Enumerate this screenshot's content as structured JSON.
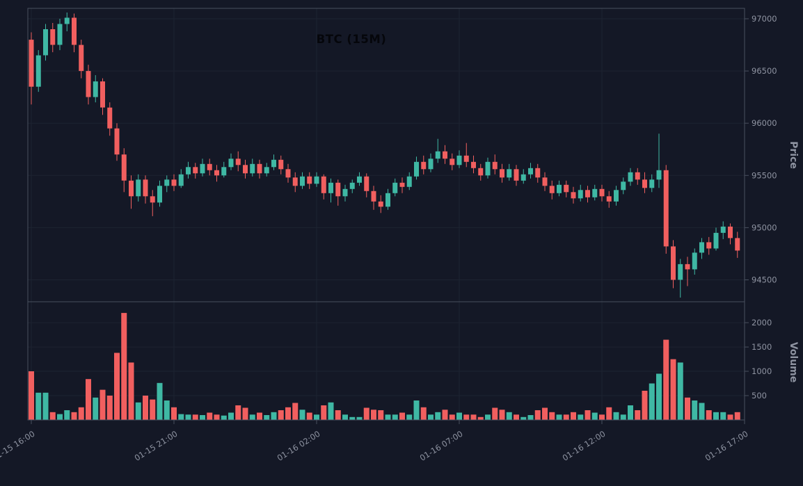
{
  "chart_data": {
    "type": "candlestick",
    "title": "BTC (15M)",
    "symbol": "BTC",
    "interval": "15M",
    "start_time": "01-15 16:00",
    "interval_minutes": 15,
    "x_tick_labels": [
      "01-15 16:00",
      "01-15 21:00",
      "01-16 02:00",
      "01-16 07:00",
      "01-16 12:00",
      "01-16 17:00"
    ],
    "price_axis": {
      "label": "Price",
      "ticks": [
        94500,
        95000,
        95500,
        96000,
        96500,
        97000
      ],
      "range": [
        94290,
        97100
      ]
    },
    "volume_axis": {
      "label": "Volume",
      "ticks": [
        500,
        1000,
        1500,
        2000
      ],
      "range": [
        0,
        2430
      ]
    },
    "colors": {
      "up": "#3fb8a4",
      "down": "#f15f5f",
      "background": "#141826",
      "grid": "#1d2331",
      "frame": "#49505f",
      "axis_text": "#8e93a1",
      "title": "#05060b"
    },
    "legend": "none",
    "grid": "on",
    "candles_format": [
      "open",
      "high",
      "low",
      "close",
      "volume"
    ],
    "candles": [
      [
        96800,
        96870,
        96180,
        96350,
        1000
      ],
      [
        96350,
        96700,
        96300,
        96650,
        560
      ],
      [
        96650,
        96950,
        96600,
        96900,
        560
      ],
      [
        96900,
        96960,
        96680,
        96750,
        160
      ],
      [
        96750,
        97000,
        96700,
        96950,
        120
      ],
      [
        96950,
        97060,
        96880,
        97010,
        200
      ],
      [
        97010,
        97050,
        96680,
        96750,
        160
      ],
      [
        96750,
        96800,
        96430,
        96500,
        260
      ],
      [
        96500,
        96560,
        96180,
        96250,
        840
      ],
      [
        96250,
        96460,
        96200,
        96400,
        460
      ],
      [
        96400,
        96430,
        96080,
        96150,
        620
      ],
      [
        96150,
        96200,
        95880,
        95950,
        500
      ],
      [
        95950,
        96000,
        95640,
        95700,
        1380
      ],
      [
        95700,
        95760,
        95340,
        95450,
        2200
      ],
      [
        95450,
        95500,
        95180,
        95300,
        1180
      ],
      [
        95300,
        95510,
        95250,
        95460,
        360
      ],
      [
        95460,
        95500,
        95230,
        95300,
        500
      ],
      [
        95300,
        95360,
        95110,
        95240,
        420
      ],
      [
        95240,
        95450,
        95200,
        95400,
        760
      ],
      [
        95400,
        95500,
        95340,
        95460,
        400
      ],
      [
        95460,
        95510,
        95350,
        95400,
        260
      ],
      [
        95400,
        95560,
        95380,
        95510,
        120
      ],
      [
        95510,
        95630,
        95470,
        95580,
        110
      ],
      [
        95580,
        95620,
        95470,
        95520,
        110
      ],
      [
        95520,
        95660,
        95490,
        95610,
        100
      ],
      [
        95610,
        95660,
        95500,
        95550,
        150
      ],
      [
        95550,
        95600,
        95440,
        95500,
        110
      ],
      [
        95500,
        95630,
        95480,
        95580,
        90
      ],
      [
        95580,
        95710,
        95550,
        95660,
        150
      ],
      [
        95660,
        95730,
        95540,
        95600,
        300
      ],
      [
        95600,
        95650,
        95470,
        95520,
        250
      ],
      [
        95520,
        95660,
        95490,
        95610,
        110
      ],
      [
        95610,
        95650,
        95470,
        95520,
        150
      ],
      [
        95520,
        95620,
        95490,
        95580,
        100
      ],
      [
        95580,
        95700,
        95550,
        95650,
        160
      ],
      [
        95650,
        95690,
        95510,
        95560,
        200
      ],
      [
        95560,
        95610,
        95430,
        95480,
        260
      ],
      [
        95480,
        95530,
        95340,
        95400,
        350
      ],
      [
        95400,
        95530,
        95370,
        95490,
        210
      ],
      [
        95490,
        95530,
        95370,
        95420,
        150
      ],
      [
        95420,
        95530,
        95390,
        95490,
        110
      ],
      [
        95490,
        95510,
        95270,
        95330,
        300
      ],
      [
        95330,
        95470,
        95240,
        95430,
        360
      ],
      [
        95430,
        95460,
        95210,
        95300,
        200
      ],
      [
        95300,
        95410,
        95250,
        95370,
        110
      ],
      [
        95370,
        95460,
        95330,
        95430,
        60
      ],
      [
        95430,
        95530,
        95400,
        95490,
        60
      ],
      [
        95490,
        95520,
        95290,
        95350,
        250
      ],
      [
        95350,
        95400,
        95170,
        95250,
        210
      ],
      [
        95250,
        95310,
        95140,
        95200,
        200
      ],
      [
        95200,
        95370,
        95170,
        95330,
        110
      ],
      [
        95330,
        95470,
        95300,
        95430,
        110
      ],
      [
        95430,
        95480,
        95330,
        95390,
        150
      ],
      [
        95390,
        95530,
        95360,
        95490,
        110
      ],
      [
        95490,
        95680,
        95460,
        95630,
        400
      ],
      [
        95630,
        95690,
        95510,
        95560,
        260
      ],
      [
        95560,
        95710,
        95530,
        95660,
        110
      ],
      [
        95660,
        95850,
        95620,
        95730,
        160
      ],
      [
        95730,
        95790,
        95610,
        95660,
        210
      ],
      [
        95660,
        95710,
        95550,
        95600,
        110
      ],
      [
        95600,
        95740,
        95570,
        95690,
        150
      ],
      [
        95690,
        95810,
        95580,
        95630,
        110
      ],
      [
        95630,
        95690,
        95520,
        95570,
        110
      ],
      [
        95570,
        95610,
        95450,
        95500,
        60
      ],
      [
        95500,
        95670,
        95470,
        95630,
        110
      ],
      [
        95630,
        95700,
        95510,
        95560,
        250
      ],
      [
        95560,
        95610,
        95430,
        95480,
        210
      ],
      [
        95480,
        95610,
        95450,
        95560,
        160
      ],
      [
        95560,
        95600,
        95400,
        95450,
        110
      ],
      [
        95450,
        95560,
        95420,
        95510,
        60
      ],
      [
        95510,
        95620,
        95470,
        95570,
        100
      ],
      [
        95570,
        95610,
        95430,
        95480,
        200
      ],
      [
        95480,
        95530,
        95350,
        95400,
        250
      ],
      [
        95400,
        95450,
        95270,
        95330,
        160
      ],
      [
        95330,
        95450,
        95300,
        95410,
        110
      ],
      [
        95410,
        95450,
        95290,
        95340,
        110
      ],
      [
        95340,
        95390,
        95230,
        95280,
        160
      ],
      [
        95280,
        95410,
        95250,
        95360,
        110
      ],
      [
        95360,
        95400,
        95240,
        95290,
        200
      ],
      [
        95290,
        95410,
        95260,
        95370,
        150
      ],
      [
        95370,
        95410,
        95250,
        95300,
        110
      ],
      [
        95300,
        95350,
        95190,
        95250,
        260
      ],
      [
        95250,
        95400,
        95210,
        95360,
        160
      ],
      [
        95360,
        95480,
        95320,
        95440,
        110
      ],
      [
        95440,
        95570,
        95400,
        95530,
        300
      ],
      [
        95530,
        95570,
        95410,
        95460,
        200
      ],
      [
        95460,
        95530,
        95330,
        95380,
        600
      ],
      [
        95380,
        95510,
        95340,
        95460,
        750
      ],
      [
        95460,
        95900,
        95380,
        95550,
        950
      ],
      [
        95550,
        95600,
        94750,
        94820,
        1650
      ],
      [
        94820,
        94880,
        94420,
        94500,
        1250
      ],
      [
        94500,
        94700,
        94330,
        94650,
        1180
      ],
      [
        94650,
        94720,
        94440,
        94600,
        460
      ],
      [
        94600,
        94800,
        94550,
        94760,
        400
      ],
      [
        94760,
        94900,
        94700,
        94860,
        350
      ],
      [
        94860,
        94910,
        94740,
        94800,
        200
      ],
      [
        94800,
        95000,
        94780,
        94950,
        160
      ],
      [
        94950,
        95060,
        94890,
        95010,
        160
      ],
      [
        95010,
        95040,
        94840,
        94900,
        110
      ],
      [
        94900,
        94960,
        94710,
        94780,
        160
      ]
    ]
  }
}
